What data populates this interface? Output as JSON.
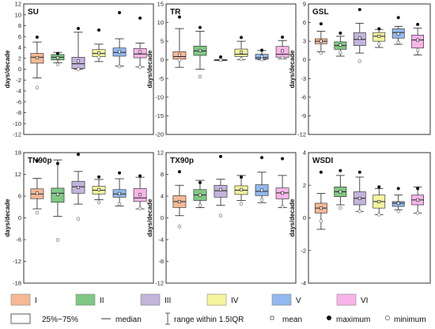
{
  "chart_data": [
    {
      "type": "box",
      "title": "SU",
      "ylabel": "days/decade",
      "ylim": [
        -12,
        12
      ],
      "yticks": [
        -12,
        -10,
        -8,
        -6,
        -4,
        -2,
        0,
        2,
        4,
        6,
        8,
        10,
        12
      ],
      "groups": [
        {
          "name": "I",
          "whisker_low": -1.6,
          "q1": 1.1,
          "median": 2.2,
          "q3": 2.9,
          "whisker_high": 5.0,
          "mean": 2.1,
          "max": 5.9,
          "min": -3.4
        },
        {
          "name": "II",
          "whisker_low": 1.2,
          "q1": 1.7,
          "median": 2.2,
          "q3": 2.7,
          "whisker_high": 3.1,
          "mean": 2.1,
          "max": 2.9,
          "min": 0.9
        },
        {
          "name": "III",
          "whisker_low": 0.0,
          "q1": 0.1,
          "median": 1.0,
          "q3": 2.2,
          "whisker_high": 6.8,
          "mean": 1.5,
          "max": 7.5,
          "min": 0.0
        },
        {
          "name": "IV",
          "whisker_low": 1.4,
          "q1": 2.3,
          "median": 2.9,
          "q3": 3.6,
          "whisker_high": 4.6,
          "mean": 3.0,
          "max": 7.2,
          "min": 2.2
        },
        {
          "name": "V",
          "whisker_low": 0.6,
          "q1": 2.4,
          "median": 3.1,
          "q3": 3.9,
          "whisker_high": 5.6,
          "mean": 3.2,
          "max": 10.4,
          "min": 0.5
        },
        {
          "name": "VI",
          "whisker_low": 0.4,
          "q1": 2.1,
          "median": 2.8,
          "q3": 3.8,
          "whisker_high": 4.8,
          "mean": 3.2,
          "max": 9.4,
          "min": 0.4
        }
      ]
    },
    {
      "type": "box",
      "title": "TR",
      "ylabel": "days/decade",
      "ylim": [
        -20,
        15
      ],
      "yticks": [
        -20,
        -15,
        -10,
        -5,
        0,
        5,
        10,
        15
      ],
      "groups": [
        {
          "name": "I",
          "whisker_low": -2.0,
          "q1": 0.2,
          "median": 0.9,
          "q3": 2.2,
          "whisker_high": 8.4,
          "mean": 1.3,
          "max": 11.5,
          "min": 0.0
        },
        {
          "name": "II",
          "whisker_low": -2.5,
          "q1": 1.2,
          "median": 2.4,
          "q3": 3.7,
          "whisker_high": 7.7,
          "mean": 2.5,
          "max": 8.7,
          "min": -4.5
        },
        {
          "name": "III",
          "whisker_low": 0.0,
          "q1": 0.0,
          "median": 0.0,
          "q3": 0.0,
          "whisker_high": 0.0,
          "mean": 0.0,
          "max": 0.8,
          "min": 0.0
        },
        {
          "name": "IV",
          "whisker_low": 0.1,
          "q1": 0.9,
          "median": 1.5,
          "q3": 2.9,
          "whisker_high": 5.0,
          "mean": 2.0,
          "max": 6.0,
          "min": 0.2
        },
        {
          "name": "V",
          "whisker_low": 0.0,
          "q1": 0.2,
          "median": 0.6,
          "q3": 1.5,
          "whisker_high": 2.5,
          "mean": 0.9,
          "max": 2.6,
          "min": 0.1
        },
        {
          "name": "VI",
          "whisker_low": 0.3,
          "q1": 0.7,
          "median": 1.5,
          "q3": 3.6,
          "whisker_high": 5.2,
          "mean": 2.4,
          "max": 6.1,
          "min": 0.6
        }
      ]
    },
    {
      "type": "box",
      "title": "GSL",
      "ylabel": "days/decade",
      "ylim": [
        -12,
        9
      ],
      "yticks": [
        -12,
        -9,
        -6,
        -3,
        0,
        3,
        6,
        9
      ],
      "groups": [
        {
          "name": "I",
          "whisker_low": 1.3,
          "q1": 2.6,
          "median": 3.0,
          "q3": 3.4,
          "whisker_high": 4.6,
          "mean": 3.0,
          "max": 5.8,
          "min": 1.1
        },
        {
          "name": "II",
          "whisker_low": 0.6,
          "q1": 1.7,
          "median": 2.3,
          "q3": 2.9,
          "whisker_high": 3.8,
          "mean": 2.4,
          "max": 4.3,
          "min": 1.2
        },
        {
          "name": "III",
          "whisker_low": 1.1,
          "q1": 2.3,
          "median": 3.3,
          "q3": 4.4,
          "whisker_high": 5.9,
          "mean": 3.5,
          "max": 8.1,
          "min": -0.2
        },
        {
          "name": "IV",
          "whisker_low": 2.0,
          "q1": 3.0,
          "median": 3.8,
          "q3": 4.4,
          "whisker_high": 4.9,
          "mean": 3.8,
          "max": 5.0,
          "min": 2.6
        },
        {
          "name": "V",
          "whisker_low": 2.5,
          "q1": 3.5,
          "median": 4.4,
          "q3": 5.0,
          "whisker_high": 5.4,
          "mean": 4.2,
          "max": 6.8,
          "min": 2.8
        },
        {
          "name": "VI",
          "whisker_low": 0.8,
          "q1": 1.9,
          "median": 3.2,
          "q3": 4.0,
          "whisker_high": 5.1,
          "mean": 3.2,
          "max": 5.7,
          "min": 1.6
        }
      ]
    },
    {
      "type": "box",
      "title": "TN90p",
      "ylabel": "days/decade",
      "ylim": [
        -18,
        18
      ],
      "yticks": [
        -18,
        -12,
        -6,
        0,
        6,
        12,
        18
      ],
      "groups": [
        {
          "name": "I",
          "whisker_low": 2.5,
          "q1": 5.3,
          "median": 6.6,
          "q3": 8.0,
          "whisker_high": 10.9,
          "mean": 6.8,
          "max": 15.8,
          "min": 1.4
        },
        {
          "name": "II",
          "whisker_low": 0.4,
          "q1": 4.3,
          "median": 6.8,
          "q3": 8.2,
          "whisker_high": 16.0,
          "mean": 6.5,
          "max": 15.0,
          "min": -6.1
        },
        {
          "name": "III",
          "whisker_low": 3.8,
          "q1": 6.8,
          "median": 8.6,
          "q3": 10.1,
          "whisker_high": 12.8,
          "mean": 8.4,
          "max": 17.5,
          "min": -0.3
        },
        {
          "name": "IV",
          "whisker_low": 5.0,
          "q1": 6.6,
          "median": 7.6,
          "q3": 8.7,
          "whisker_high": 10.6,
          "mean": 7.8,
          "max": 11.3,
          "min": 4.3
        },
        {
          "name": "V",
          "whisker_low": 3.3,
          "q1": 5.7,
          "median": 6.6,
          "q3": 7.8,
          "whisker_high": 10.8,
          "mean": 6.7,
          "max": 12.4,
          "min": 3.8
        },
        {
          "name": "VI",
          "whisker_low": 2.5,
          "q1": 4.5,
          "median": 5.5,
          "q3": 8.1,
          "whisker_high": 11.2,
          "mean": 6.4,
          "max": 11.6,
          "min": 2.6
        }
      ]
    },
    {
      "type": "box",
      "title": "TX90p",
      "ylabel": "days/decade",
      "ylim": [
        -12,
        12
      ],
      "yticks": [
        -12,
        -8,
        -4,
        0,
        4,
        8,
        12
      ],
      "groups": [
        {
          "name": "I",
          "whisker_low": 0.4,
          "q1": 1.9,
          "median": 3.0,
          "q3": 4.1,
          "whisker_high": 6.0,
          "mean": 3.0,
          "max": 8.5,
          "min": -1.6
        },
        {
          "name": "II",
          "whisker_low": 1.9,
          "q1": 3.2,
          "median": 4.2,
          "q3": 5.2,
          "whisker_high": 6.9,
          "mean": 4.2,
          "max": 6.5,
          "min": 2.3
        },
        {
          "name": "III",
          "whisker_low": 2.3,
          "q1": 3.8,
          "median": 5.0,
          "q3": 6.0,
          "whisker_high": 7.1,
          "mean": 5.2,
          "max": 11.3,
          "min": 0.4
        },
        {
          "name": "IV",
          "whisker_low": 3.2,
          "q1": 4.3,
          "median": 5.1,
          "q3": 5.9,
          "whisker_high": 7.8,
          "mean": 5.2,
          "max": 7.5,
          "min": 2.6
        },
        {
          "name": "V",
          "whisker_low": 2.8,
          "q1": 4.1,
          "median": 4.9,
          "q3": 6.1,
          "whisker_high": 8.4,
          "mean": 5.1,
          "max": 11.1,
          "min": 3.3
        },
        {
          "name": "VI",
          "whisker_low": 1.9,
          "q1": 3.5,
          "median": 4.6,
          "q3": 5.5,
          "whisker_high": 7.8,
          "mean": 4.6,
          "max": 10.9,
          "min": 2.1
        }
      ]
    },
    {
      "type": "box",
      "title": "WSDI",
      "ylabel": "days/decade",
      "ylim": [
        -4,
        4
      ],
      "yticks": [
        -4,
        -2,
        0,
        2,
        4
      ],
      "groups": [
        {
          "name": "I",
          "whisker_low": -0.7,
          "q1": 0.3,
          "median": 0.6,
          "q3": 0.9,
          "whisker_high": 1.5,
          "mean": 0.6,
          "max": 2.8,
          "min": -0.2
        },
        {
          "name": "II",
          "whisker_low": 0.8,
          "q1": 1.3,
          "median": 1.6,
          "q3": 1.9,
          "whisker_high": 2.6,
          "mean": 1.6,
          "max": 2.9,
          "min": 0.6
        },
        {
          "name": "III",
          "whisker_low": 0.4,
          "q1": 0.8,
          "median": 1.2,
          "q3": 1.6,
          "whisker_high": 2.5,
          "mean": 1.2,
          "max": 2.8,
          "min": 0.4
        },
        {
          "name": "IV",
          "whisker_low": 0.2,
          "q1": 0.6,
          "median": 1.0,
          "q3": 1.4,
          "whisker_high": 1.8,
          "mean": 1.0,
          "max": 1.9,
          "min": 0.2
        },
        {
          "name": "V",
          "whisker_low": 0.5,
          "q1": 0.7,
          "median": 0.9,
          "q3": 1.0,
          "whisker_high": 1.4,
          "mean": 0.9,
          "max": 1.8,
          "min": 0.4
        },
        {
          "name": "VI",
          "whisker_low": 0.3,
          "q1": 0.8,
          "median": 1.1,
          "q3": 1.4,
          "whisker_high": 1.9,
          "mean": 1.1,
          "max": 1.8,
          "min": 0.3
        }
      ]
    }
  ],
  "colors": {
    "I": "#f6b896",
    "II": "#7fc884",
    "III": "#c3b4dc",
    "IV": "#f4f59c",
    "V": "#91b9ee",
    "VI": "#f8b4e8",
    "stroke": "#222222"
  },
  "legend": {
    "groups": [
      "I",
      "II",
      "III",
      "IV",
      "V",
      "VI"
    ],
    "box_label": "25%~75%",
    "median_label": "median",
    "range_label": "range within 1.5IQR",
    "mean_label": "mean",
    "maximum_label": "maximum",
    "minimum_label": "minimum"
  }
}
